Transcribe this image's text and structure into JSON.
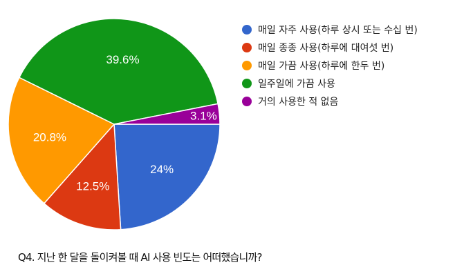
{
  "chart_data": {
    "type": "pie",
    "title": "Q4. 지난 한 달을 돌이켜볼 때 AI 사용 빈도는 어떠했습니까?",
    "categories": [
      "매일 자주 사용(하루 상시 또는 수십 번)",
      "매일 종종 사용(하루에 대여섯 번)",
      "매일 가끔 사용(하루에 한두 번)",
      "일주일에 가끔 사용",
      "거의 사용한 적 없음"
    ],
    "values": [
      24,
      12.5,
      20.8,
      39.6,
      3.1
    ],
    "labels": [
      "24%",
      "12.5%",
      "20.8%",
      "39.6%",
      "3.1%"
    ],
    "colors": [
      "#3366cc",
      "#dc3912",
      "#ff9900",
      "#109618",
      "#990099"
    ],
    "legend_position": "right",
    "start_angle": "3 o'clock, clockwise"
  },
  "legend": {
    "items": [
      {
        "label": "매일 자주 사용(하루 상시 또는 수십 번)",
        "color": "#3366cc"
      },
      {
        "label": "매일 종종 사용(하루에 대여섯 번)",
        "color": "#dc3912"
      },
      {
        "label": "매일 가끔 사용(하루에 한두 번)",
        "color": "#ff9900"
      },
      {
        "label": "일주일에 가끔 사용",
        "color": "#109618"
      },
      {
        "label": "거의 사용한 적 없음",
        "color": "#990099"
      }
    ]
  },
  "caption": "Q4. 지난 한 달을 돌이켜볼 때 AI 사용 빈도는 어떠했습니까?"
}
